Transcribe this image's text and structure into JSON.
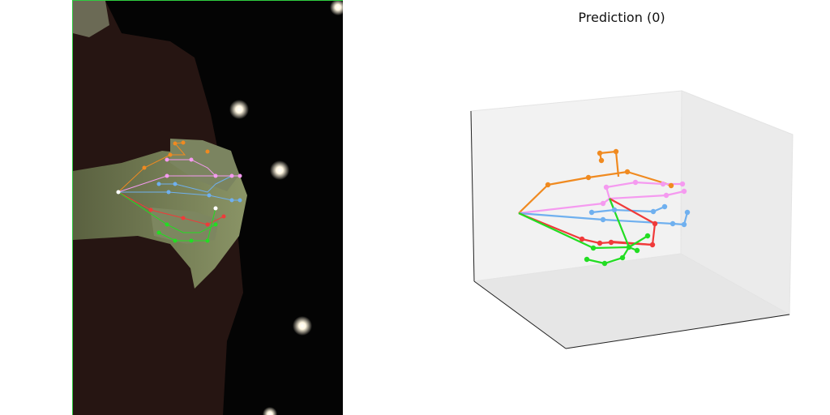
{
  "plot": {
    "title": "Prediction (0)"
  },
  "colors": {
    "thumb": "#f08a20",
    "index": "#f59af0",
    "middle": "#6fb0ef",
    "ring": "#f03a3a",
    "pinky": "#22dd22",
    "photo_border": "#2ecc40"
  },
  "skeleton": {
    "fingers": [
      "thumb",
      "index",
      "middle",
      "ring",
      "pinky"
    ],
    "keypoints_per_finger": 4
  }
}
